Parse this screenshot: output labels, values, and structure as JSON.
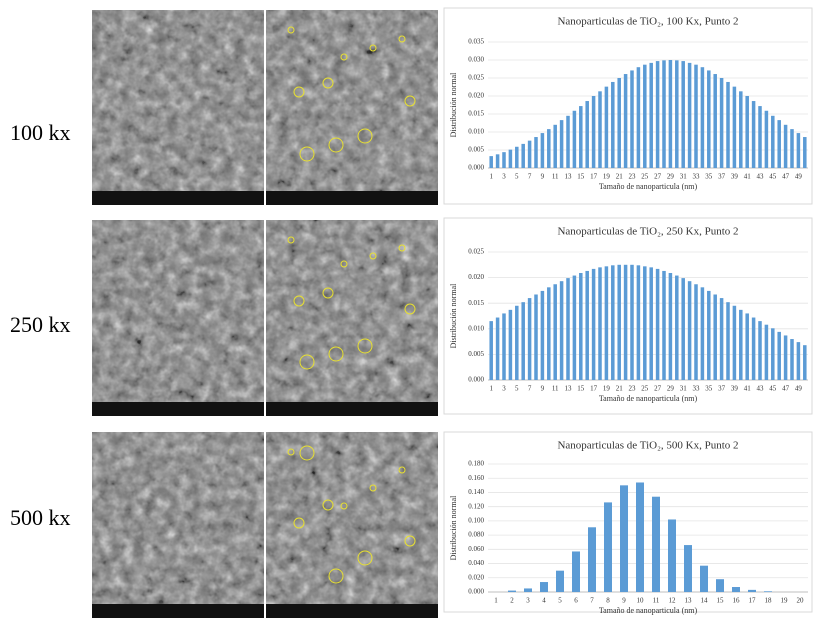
{
  "row_labels": [
    "100 kx",
    "250 kx",
    "500 kx"
  ],
  "chart_data": [
    {
      "type": "bar",
      "title": "Nanoparticulas de TiO₂, 100 Kx, Punto 2",
      "x_label": "Tamaño de nanoparticula (nm)",
      "y_label": "Distribución normal",
      "color": "#5b9bd5",
      "grid": true,
      "categories": [
        1,
        null,
        3,
        null,
        5,
        null,
        7,
        null,
        9,
        null,
        11,
        null,
        13,
        null,
        15,
        null,
        17,
        null,
        19,
        null,
        21,
        null,
        23,
        null,
        25,
        null,
        27,
        null,
        29,
        null,
        31,
        null,
        33,
        null,
        35,
        null,
        37,
        null,
        39,
        null,
        41,
        null,
        43,
        null,
        45,
        null,
        47,
        null,
        49,
        null
      ],
      "values": [
        0.0033,
        0.0038,
        0.0044,
        0.0051,
        0.0059,
        0.0067,
        0.0076,
        0.0086,
        0.0097,
        0.0108,
        0.012,
        0.0133,
        0.0145,
        0.0159,
        0.0172,
        0.0186,
        0.02,
        0.0213,
        0.0226,
        0.0239,
        0.025,
        0.0261,
        0.0271,
        0.028,
        0.0287,
        0.0292,
        0.0297,
        0.0299,
        0.03,
        0.0299,
        0.0297,
        0.0292,
        0.0287,
        0.028,
        0.0271,
        0.0261,
        0.025,
        0.0239,
        0.0226,
        0.0213,
        0.02,
        0.0186,
        0.0172,
        0.0159,
        0.0145,
        0.0133,
        0.012,
        0.0108,
        0.0097,
        0.0086
      ],
      "ylim": [
        0,
        0.035
      ],
      "yticks": [
        {
          "value": 0,
          "label": "0.000"
        },
        {
          "value": 0.005,
          "label": "0.005"
        },
        {
          "value": 0.01,
          "label": "0.010"
        },
        {
          "value": 0.015,
          "label": "0.015"
        },
        {
          "value": 0.02,
          "label": "0.020"
        },
        {
          "value": 0.025,
          "label": "0.025"
        },
        {
          "value": 0.03,
          "label": "0.030"
        },
        {
          "value": 0.035,
          "label": "0.035"
        }
      ]
    },
    {
      "type": "bar",
      "title": "Nanoparticulas de TiO₂, 250 Kx, Punto 2",
      "x_label": "Tamaño de nanoparticula (nm)",
      "y_label": "Distribución normal",
      "color": "#5b9bd5",
      "grid": true,
      "categories": [
        1,
        null,
        3,
        null,
        5,
        null,
        7,
        null,
        9,
        null,
        11,
        null,
        13,
        null,
        15,
        null,
        17,
        null,
        19,
        null,
        21,
        null,
        23,
        null,
        25,
        null,
        27,
        null,
        29,
        null,
        31,
        null,
        33,
        null,
        35,
        null,
        37,
        null,
        39,
        null,
        41,
        null,
        43,
        null,
        45,
        null,
        47,
        null,
        49,
        null
      ],
      "values": [
        0.0115,
        0.0122,
        0.013,
        0.0137,
        0.0145,
        0.0152,
        0.016,
        0.0167,
        0.0174,
        0.0181,
        0.0187,
        0.0193,
        0.0199,
        0.0204,
        0.0209,
        0.0213,
        0.0217,
        0.022,
        0.0222,
        0.0224,
        0.0225,
        0.0225,
        0.0225,
        0.0224,
        0.0222,
        0.022,
        0.0217,
        0.0213,
        0.0209,
        0.0204,
        0.0199,
        0.0193,
        0.0187,
        0.0181,
        0.0174,
        0.0167,
        0.016,
        0.0152,
        0.0145,
        0.0137,
        0.013,
        0.0122,
        0.0115,
        0.0108,
        0.0101,
        0.0094,
        0.0087,
        0.008,
        0.0074,
        0.0068
      ],
      "ylim": [
        0,
        0.025
      ],
      "yticks": [
        {
          "value": 0,
          "label": "0.000"
        },
        {
          "value": 0.005,
          "label": "0.005"
        },
        {
          "value": 0.01,
          "label": "0.010"
        },
        {
          "value": 0.015,
          "label": "0.015"
        },
        {
          "value": 0.02,
          "label": "0.020"
        },
        {
          "value": 0.025,
          "label": "0.025"
        }
      ]
    },
    {
      "type": "bar",
      "title": "Nanoparticulas de TiO₂, 500 Kx, Punto 2",
      "x_label": "Tamaño de nanoparticula (nm)",
      "y_label": "Distribución normal",
      "color": "#5b9bd5",
      "grid": true,
      "categories": [
        1,
        2,
        3,
        4,
        5,
        6,
        7,
        8,
        9,
        10,
        11,
        12,
        13,
        14,
        15,
        16,
        17,
        18,
        19,
        20
      ],
      "values": [
        0.0,
        0.002,
        0.005,
        0.014,
        0.03,
        0.057,
        0.091,
        0.126,
        0.15,
        0.154,
        0.134,
        0.102,
        0.066,
        0.037,
        0.018,
        0.007,
        0.003,
        0.001,
        0.0,
        0.0
      ],
      "ylim": [
        0,
        0.18
      ],
      "yticks": [
        {
          "value": 0,
          "label": "0.000"
        },
        {
          "value": 0.02,
          "label": "0.020"
        },
        {
          "value": 0.04,
          "label": "0.040"
        },
        {
          "value": 0.06,
          "label": "0.060"
        },
        {
          "value": 0.08,
          "label": "0.080"
        },
        {
          "value": 0.1,
          "label": "0.100"
        },
        {
          "value": 0.12,
          "label": "0.120"
        },
        {
          "value": 0.14,
          "label": "0.140"
        },
        {
          "value": 0.16,
          "label": "0.160"
        },
        {
          "value": 0.18,
          "label": "0.180"
        }
      ]
    }
  ]
}
